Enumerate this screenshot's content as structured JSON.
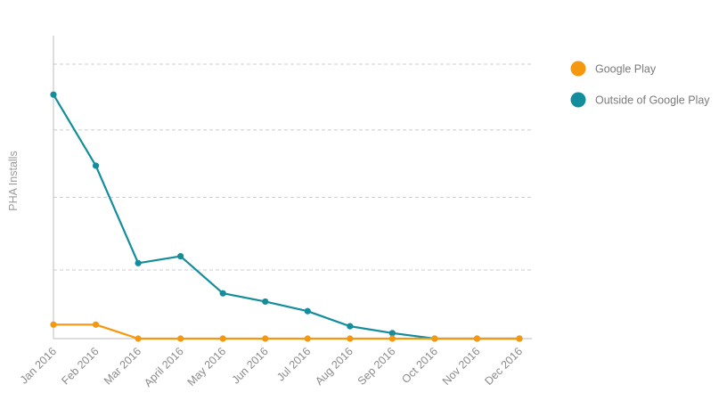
{
  "chart_data": {
    "type": "line",
    "categories": [
      "Jan 2016",
      "Feb 2016",
      "Mar 2016",
      "April 2016",
      "May 2016",
      "Jun 2016",
      "Jul 2016",
      "Aug 2016",
      "Sep 2016",
      "Oct 2016",
      "Nov 2016",
      "Dec 2016"
    ],
    "series": [
      {
        "name": "Google Play",
        "color": "#f5970f",
        "values": [
          0.051,
          0.051,
          0,
          0,
          0,
          0,
          0,
          0,
          0,
          0,
          0,
          0
        ]
      },
      {
        "name": "Outside of Google Play",
        "color": "#138d9c",
        "values": [
          0.889,
          0.63,
          0.275,
          0.3,
          0.165,
          0.135,
          0.1,
          0.045,
          0.02,
          0,
          0,
          0
        ]
      }
    ],
    "ylabel": "PHA Installs",
    "xlabel": "",
    "ylim": [
      0,
      1
    ],
    "ygridlines": [
      0.25,
      0.515,
      0.76,
      1.0
    ],
    "grid": "horizontal dashed",
    "legend_position": "right",
    "colors": {
      "grid": "#cccccc",
      "axis": "#bbbbbb",
      "text": "#8a8a8a"
    }
  }
}
